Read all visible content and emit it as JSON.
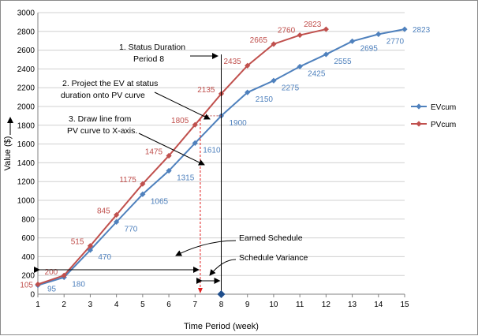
{
  "chart_data": {
    "type": "line",
    "title": "",
    "xlabel": "Time Period (week)",
    "ylabel": "Value ($)",
    "xlim": [
      1,
      15
    ],
    "ylim": [
      0,
      3000
    ],
    "x_ticks": [
      1,
      2,
      3,
      4,
      5,
      6,
      7,
      8,
      9,
      10,
      11,
      12,
      13,
      14,
      15
    ],
    "y_ticks": [
      0,
      200,
      400,
      600,
      800,
      1000,
      1200,
      1400,
      1600,
      1800,
      2000,
      2200,
      2400,
      2600,
      2800,
      3000
    ],
    "grid": "horizontal",
    "legend_position": "right",
    "series": [
      {
        "name": "EVcum",
        "color": "#4f81bd",
        "x": [
          1,
          2,
          3,
          4,
          5,
          6,
          7,
          8,
          9,
          10,
          11,
          12,
          13,
          14,
          15
        ],
        "y": [
          95,
          180,
          470,
          770,
          1065,
          1315,
          1610,
          1900,
          2150,
          2275,
          2425,
          2555,
          2695,
          2770,
          2823
        ],
        "labels": [
          "95",
          "180",
          "470",
          "770",
          "1065",
          "1315",
          "1610",
          "1900",
          "2150",
          "2275",
          "2425",
          "2555",
          "2695",
          "2770",
          "2823"
        ]
      },
      {
        "name": "PVcum",
        "color": "#c0504d",
        "x": [
          1,
          2,
          3,
          4,
          5,
          6,
          7,
          8,
          9,
          10,
          11,
          12
        ],
        "y": [
          105,
          200,
          515,
          845,
          1175,
          1475,
          1805,
          2135,
          2435,
          2665,
          2760,
          2823
        ],
        "labels": [
          "105",
          "200",
          "515",
          "845",
          "1175",
          "1475",
          "1805",
          "2135",
          "2435",
          "2665",
          "2760",
          "2823"
        ]
      }
    ],
    "status_marker": {
      "x": 8,
      "y": 0,
      "color": "#1f4e8c"
    },
    "status_line_x": 8,
    "projection_x": 7.2,
    "annotations": [
      {
        "lines": [
          "1.  Status Duration",
          "Period 8"
        ]
      },
      {
        "lines": [
          "2.  Project the EV at status",
          "duration onto PV curve"
        ]
      },
      {
        "lines": [
          "3.  Draw line from",
          "PV curve to X-axis."
        ]
      },
      {
        "lines": [
          "Earned Schedule"
        ]
      },
      {
        "lines": [
          "Schedule Variance"
        ]
      }
    ]
  }
}
